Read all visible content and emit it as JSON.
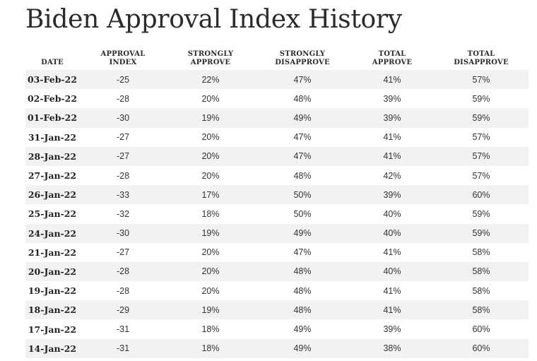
{
  "title": "Biden Approval Index History",
  "columns": [
    [
      "DATE"
    ],
    [
      "APPROVAL",
      "INDEX"
    ],
    [
      "STRONGLY",
      "APPROVE"
    ],
    [
      "STRONGLY",
      "DISAPPROVE"
    ],
    [
      "TOTAL",
      "APPROVE"
    ],
    [
      "TOTAL",
      "DISAPPROVE"
    ]
  ],
  "rows": [
    [
      "03-Feb-22",
      "-25",
      "22%",
      "47%",
      "41%",
      "57%"
    ],
    [
      "02-Feb-22",
      "-28",
      "20%",
      "48%",
      "39%",
      "59%"
    ],
    [
      "01-Feb-22",
      "-30",
      "19%",
      "49%",
      "39%",
      "59%"
    ],
    [
      "31-Jan-22",
      "-27",
      "20%",
      "47%",
      "41%",
      "57%"
    ],
    [
      "28-Jan-22",
      "-27",
      "20%",
      "47%",
      "41%",
      "57%"
    ],
    [
      "27-Jan-22",
      "-28",
      "20%",
      "48%",
      "42%",
      "57%"
    ],
    [
      "26-Jan-22",
      "-33",
      "17%",
      "50%",
      "39%",
      "60%"
    ],
    [
      "25-Jan-22",
      "-32",
      "18%",
      "50%",
      "40%",
      "59%"
    ],
    [
      "24-Jan-22",
      "-30",
      "19%",
      "49%",
      "40%",
      "59%"
    ],
    [
      "21-Jan-22",
      "-27",
      "20%",
      "47%",
      "41%",
      "58%"
    ],
    [
      "20-Jan-22",
      "-28",
      "20%",
      "48%",
      "40%",
      "58%"
    ],
    [
      "19-Jan-22",
      "-28",
      "20%",
      "48%",
      "41%",
      "58%"
    ],
    [
      "18-Jan-22",
      "-29",
      "19%",
      "48%",
      "41%",
      "58%"
    ],
    [
      "17-Jan-22",
      "-31",
      "18%",
      "49%",
      "39%",
      "60%"
    ],
    [
      "14-Jan-22",
      "-31",
      "18%",
      "49%",
      "38%",
      "60%"
    ]
  ]
}
